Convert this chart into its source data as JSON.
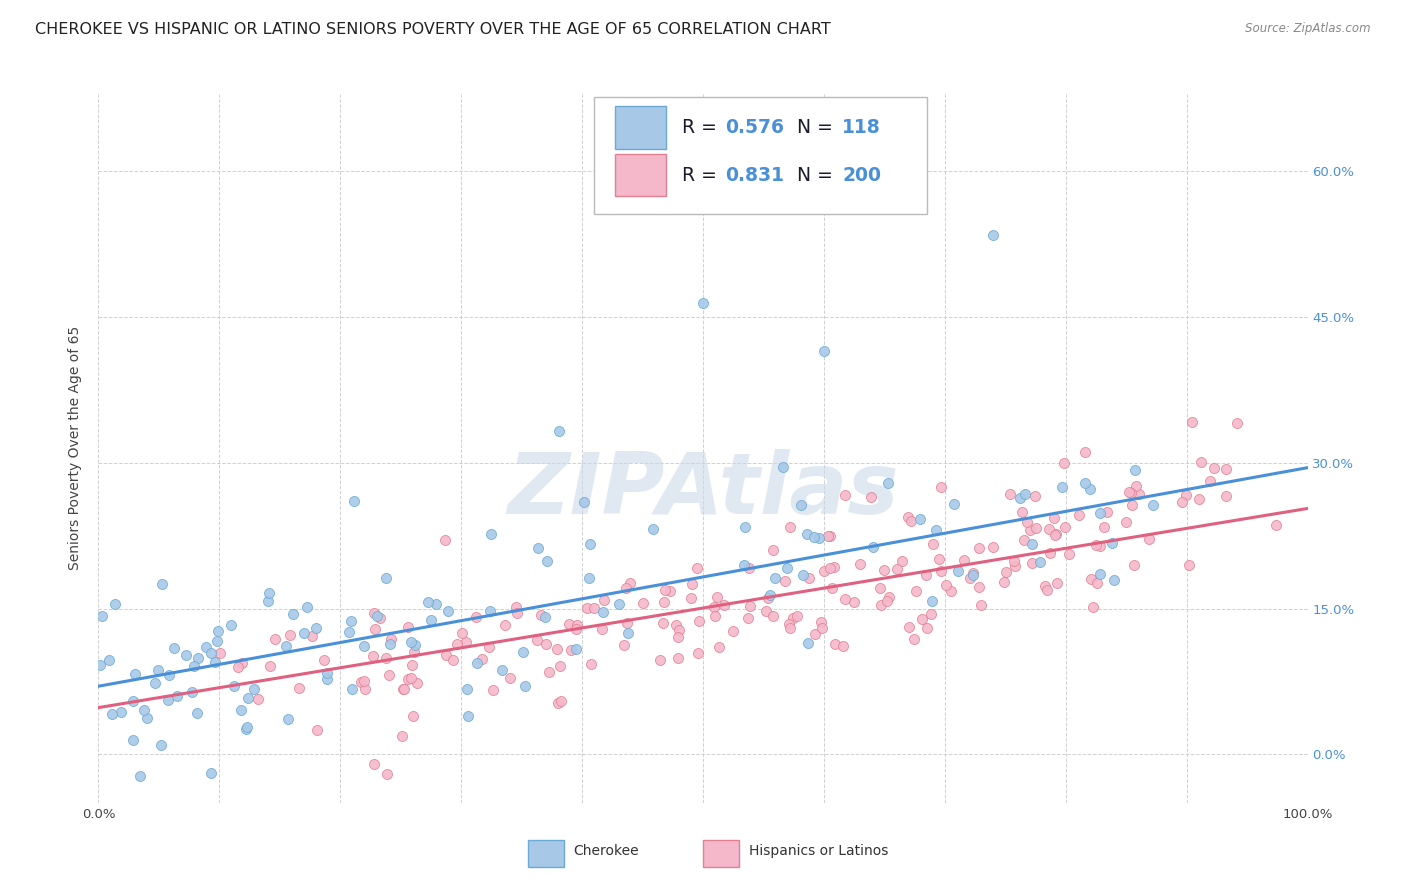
{
  "title": "CHEROKEE VS HISPANIC OR LATINO SENIORS POVERTY OVER THE AGE OF 65 CORRELATION CHART",
  "source": "Source: ZipAtlas.com",
  "ylabel": "Seniors Poverty Over the Age of 65",
  "xlabel_ticks": [
    "0.0%",
    "",
    "",
    "",
    "",
    "",
    "",
    "",
    "",
    "",
    "100.0%"
  ],
  "ylabel_ticks_right": [
    "0.0%",
    "15.0%",
    "30.0%",
    "45.0%",
    "60.0%"
  ],
  "xlim": [
    0,
    1
  ],
  "ylim": [
    -0.05,
    0.68
  ],
  "cherokee_R": 0.576,
  "cherokee_N": 118,
  "hispanic_R": 0.831,
  "hispanic_N": 200,
  "cherokee_color": "#a8c8e8",
  "cherokee_edge_color": "#6aaad4",
  "cherokee_line_color": "#4a90d9",
  "hispanic_color": "#f5b8cb",
  "hispanic_edge_color": "#e08090",
  "hispanic_line_color": "#e06080",
  "legend_label_cherokee": "Cherokee",
  "legend_label_hispanic": "Hispanics or Latinos",
  "watermark": "ZIPAtlas",
  "background_color": "#ffffff",
  "grid_color": "#cccccc",
  "title_fontsize": 11.5,
  "axis_label_fontsize": 10,
  "tick_fontsize": 9.5,
  "legend_text_color": "#1a1a2e",
  "legend_value_color": "#4a90d9",
  "cherokee_slope": 0.225,
  "cherokee_intercept": 0.07,
  "hispanic_slope": 0.205,
  "hispanic_intercept": 0.048
}
